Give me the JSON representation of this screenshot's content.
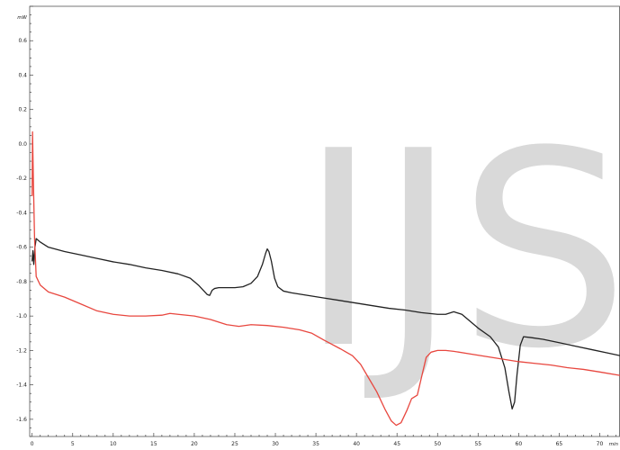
{
  "chart_data": {
    "type": "line",
    "title": "",
    "xlabel": "min",
    "ylabel": "mW",
    "xlim": [
      -0.3,
      72.5
    ],
    "ylim": [
      -1.7,
      0.8
    ],
    "grid": false,
    "legend": "none",
    "xticks": [
      {
        "value": 0,
        "label": "0"
      },
      {
        "value": 5,
        "label": "5"
      },
      {
        "value": 10,
        "label": "10"
      },
      {
        "value": 15,
        "label": "15"
      },
      {
        "value": 20,
        "label": "20"
      },
      {
        "value": 25,
        "label": "25"
      },
      {
        "value": 30,
        "label": "30"
      },
      {
        "value": 35,
        "label": "35"
      },
      {
        "value": 40,
        "label": "40"
      },
      {
        "value": 45,
        "label": "45"
      },
      {
        "value": 50,
        "label": "50"
      },
      {
        "value": 55,
        "label": "55"
      },
      {
        "value": 60,
        "label": "60"
      },
      {
        "value": 65,
        "label": "65"
      },
      {
        "value": 70,
        "label": "70"
      }
    ],
    "yticks": [
      {
        "value": 0.6,
        "label": "0.6"
      },
      {
        "value": 0.4,
        "label": "0.4"
      },
      {
        "value": 0.2,
        "label": "0.2"
      },
      {
        "value": 0.0,
        "label": "0.0"
      },
      {
        "value": -0.2,
        "label": "-0.2"
      },
      {
        "value": -0.4,
        "label": "-0.4"
      },
      {
        "value": -0.6,
        "label": "-0.6"
      },
      {
        "value": -0.8,
        "label": "-0.8"
      },
      {
        "value": -1.0,
        "label": "-1.0"
      },
      {
        "value": -1.2,
        "label": "-1.2"
      },
      {
        "value": -1.4,
        "label": "-1.4"
      },
      {
        "value": -1.6,
        "label": "-1.6"
      }
    ],
    "series": [
      {
        "color": "#222222",
        "points": [
          [
            0.0,
            -0.68
          ],
          [
            0.1,
            -0.62
          ],
          [
            0.2,
            -0.7
          ],
          [
            0.35,
            -0.6
          ],
          [
            0.5,
            -0.55
          ],
          [
            1.0,
            -0.57
          ],
          [
            2.0,
            -0.6
          ],
          [
            4.0,
            -0.625
          ],
          [
            6.0,
            -0.645
          ],
          [
            8.0,
            -0.665
          ],
          [
            10.0,
            -0.685
          ],
          [
            12.0,
            -0.7
          ],
          [
            14.0,
            -0.72
          ],
          [
            16.0,
            -0.735
          ],
          [
            18.0,
            -0.755
          ],
          [
            19.5,
            -0.78
          ],
          [
            20.5,
            -0.82
          ],
          [
            21.2,
            -0.855
          ],
          [
            21.6,
            -0.875
          ],
          [
            21.9,
            -0.88
          ],
          [
            22.2,
            -0.85
          ],
          [
            22.5,
            -0.84
          ],
          [
            23.0,
            -0.835
          ],
          [
            24.0,
            -0.835
          ],
          [
            25.0,
            -0.835
          ],
          [
            26.0,
            -0.83
          ],
          [
            27.0,
            -0.81
          ],
          [
            27.8,
            -0.77
          ],
          [
            28.4,
            -0.7
          ],
          [
            28.8,
            -0.635
          ],
          [
            29.0,
            -0.61
          ],
          [
            29.2,
            -0.625
          ],
          [
            29.5,
            -0.68
          ],
          [
            29.9,
            -0.78
          ],
          [
            30.3,
            -0.83
          ],
          [
            31.0,
            -0.855
          ],
          [
            32.0,
            -0.865
          ],
          [
            34.0,
            -0.88
          ],
          [
            36.0,
            -0.895
          ],
          [
            38.0,
            -0.91
          ],
          [
            40.0,
            -0.925
          ],
          [
            42.0,
            -0.94
          ],
          [
            44.0,
            -0.955
          ],
          [
            46.0,
            -0.965
          ],
          [
            48.0,
            -0.98
          ],
          [
            50.0,
            -0.99
          ],
          [
            51.0,
            -0.99
          ],
          [
            52.0,
            -0.975
          ],
          [
            53.0,
            -0.99
          ],
          [
            54.0,
            -1.03
          ],
          [
            55.0,
            -1.07
          ],
          [
            56.5,
            -1.12
          ],
          [
            57.5,
            -1.18
          ],
          [
            58.3,
            -1.3
          ],
          [
            58.8,
            -1.44
          ],
          [
            59.2,
            -1.54
          ],
          [
            59.5,
            -1.5
          ],
          [
            59.8,
            -1.34
          ],
          [
            60.2,
            -1.17
          ],
          [
            60.6,
            -1.12
          ],
          [
            61.5,
            -1.125
          ],
          [
            63.0,
            -1.135
          ],
          [
            65.0,
            -1.155
          ],
          [
            67.0,
            -1.175
          ],
          [
            69.0,
            -1.195
          ],
          [
            71.0,
            -1.215
          ],
          [
            72.5,
            -1.23
          ]
        ]
      },
      {
        "color": "#e8473f",
        "points": [
          [
            0.0,
            -0.3
          ],
          [
            0.05,
            0.07
          ],
          [
            0.15,
            -0.2
          ],
          [
            0.3,
            -0.55
          ],
          [
            0.5,
            -0.77
          ],
          [
            1.0,
            -0.82
          ],
          [
            2.0,
            -0.86
          ],
          [
            4.0,
            -0.89
          ],
          [
            6.0,
            -0.93
          ],
          [
            8.0,
            -0.97
          ],
          [
            10.0,
            -0.99
          ],
          [
            12.0,
            -1.0
          ],
          [
            14.0,
            -1.0
          ],
          [
            16.0,
            -0.995
          ],
          [
            17.0,
            -0.985
          ],
          [
            18.0,
            -0.99
          ],
          [
            20.0,
            -1.0
          ],
          [
            22.0,
            -1.02
          ],
          [
            24.0,
            -1.05
          ],
          [
            25.5,
            -1.06
          ],
          [
            27.0,
            -1.05
          ],
          [
            29.0,
            -1.055
          ],
          [
            31.0,
            -1.065
          ],
          [
            33.0,
            -1.08
          ],
          [
            34.5,
            -1.1
          ],
          [
            36.0,
            -1.14
          ],
          [
            38.0,
            -1.19
          ],
          [
            39.5,
            -1.23
          ],
          [
            40.5,
            -1.28
          ],
          [
            41.5,
            -1.36
          ],
          [
            42.5,
            -1.44
          ],
          [
            43.5,
            -1.54
          ],
          [
            44.3,
            -1.61
          ],
          [
            44.9,
            -1.635
          ],
          [
            45.5,
            -1.62
          ],
          [
            46.2,
            -1.55
          ],
          [
            46.8,
            -1.48
          ],
          [
            47.5,
            -1.46
          ],
          [
            48.0,
            -1.36
          ],
          [
            48.6,
            -1.24
          ],
          [
            49.2,
            -1.21
          ],
          [
            50.0,
            -1.2
          ],
          [
            51.0,
            -1.2
          ],
          [
            52.0,
            -1.205
          ],
          [
            54.0,
            -1.22
          ],
          [
            56.0,
            -1.235
          ],
          [
            58.0,
            -1.25
          ],
          [
            60.0,
            -1.265
          ],
          [
            62.0,
            -1.275
          ],
          [
            64.0,
            -1.285
          ],
          [
            66.0,
            -1.3
          ],
          [
            68.0,
            -1.31
          ],
          [
            70.0,
            -1.325
          ],
          [
            72.5,
            -1.345
          ]
        ]
      }
    ]
  },
  "watermark": "IJS"
}
